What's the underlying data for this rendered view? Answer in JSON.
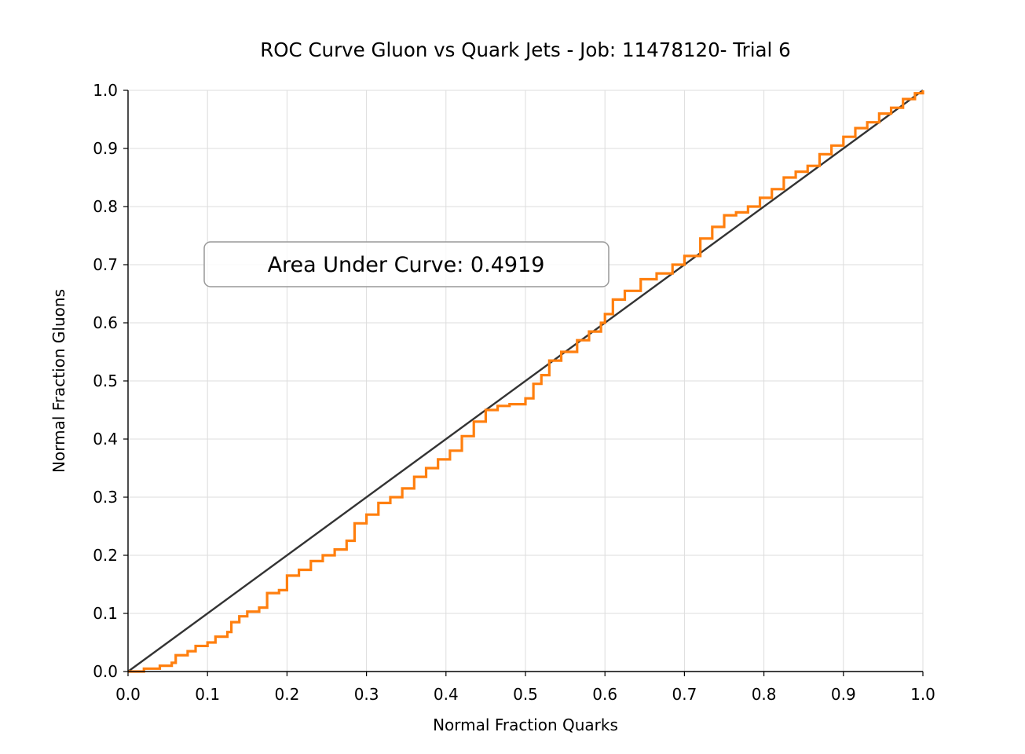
{
  "chart_data": {
    "type": "line",
    "title": "ROC Curve Gluon vs Quark Jets - Job: 11478120- Trial 6",
    "xlabel": "Normal Fraction Quarks",
    "ylabel": "Normal Fraction Gluons",
    "xlim": [
      0.0,
      1.0
    ],
    "ylim": [
      0.0,
      1.0
    ],
    "xticks": [
      "0.0",
      "0.1",
      "0.2",
      "0.3",
      "0.4",
      "0.5",
      "0.6",
      "0.7",
      "0.8",
      "0.9",
      "1.0"
    ],
    "yticks": [
      "0.0",
      "0.1",
      "0.2",
      "0.3",
      "0.4",
      "0.5",
      "0.6",
      "0.7",
      "0.8",
      "0.9",
      "1.0"
    ],
    "grid": true,
    "annotation": "Area Under Curve: 0.4919",
    "colors": {
      "roc": "#ff7f0e",
      "diagonal": "#333333",
      "grid": "#dddddd"
    },
    "series": [
      {
        "role": "roc",
        "step": true,
        "x": [
          0.0,
          0.02,
          0.04,
          0.055,
          0.06,
          0.075,
          0.085,
          0.1,
          0.11,
          0.125,
          0.13,
          0.14,
          0.15,
          0.165,
          0.175,
          0.19,
          0.2,
          0.215,
          0.23,
          0.245,
          0.26,
          0.275,
          0.285,
          0.3,
          0.315,
          0.33,
          0.345,
          0.36,
          0.375,
          0.39,
          0.405,
          0.42,
          0.435,
          0.45,
          0.465,
          0.48,
          0.5,
          0.51,
          0.52,
          0.53,
          0.545,
          0.565,
          0.58,
          0.595,
          0.6,
          0.61,
          0.625,
          0.645,
          0.665,
          0.685,
          0.7,
          0.72,
          0.735,
          0.75,
          0.765,
          0.78,
          0.795,
          0.81,
          0.825,
          0.84,
          0.855,
          0.87,
          0.885,
          0.9,
          0.915,
          0.93,
          0.945,
          0.96,
          0.975,
          0.99,
          1.0
        ],
        "y": [
          0.0,
          0.005,
          0.01,
          0.015,
          0.028,
          0.035,
          0.044,
          0.05,
          0.06,
          0.068,
          0.085,
          0.095,
          0.103,
          0.11,
          0.135,
          0.14,
          0.165,
          0.175,
          0.19,
          0.2,
          0.21,
          0.225,
          0.255,
          0.27,
          0.29,
          0.3,
          0.315,
          0.335,
          0.35,
          0.365,
          0.38,
          0.405,
          0.43,
          0.45,
          0.457,
          0.46,
          0.47,
          0.495,
          0.51,
          0.535,
          0.55,
          0.57,
          0.585,
          0.6,
          0.615,
          0.64,
          0.655,
          0.675,
          0.685,
          0.7,
          0.715,
          0.745,
          0.765,
          0.785,
          0.79,
          0.8,
          0.815,
          0.83,
          0.85,
          0.86,
          0.87,
          0.89,
          0.905,
          0.92,
          0.935,
          0.945,
          0.96,
          0.97,
          0.985,
          0.995,
          1.0
        ]
      },
      {
        "role": "diagonal",
        "x": [
          0.0,
          1.0
        ],
        "y": [
          0.0,
          1.0
        ]
      }
    ]
  }
}
